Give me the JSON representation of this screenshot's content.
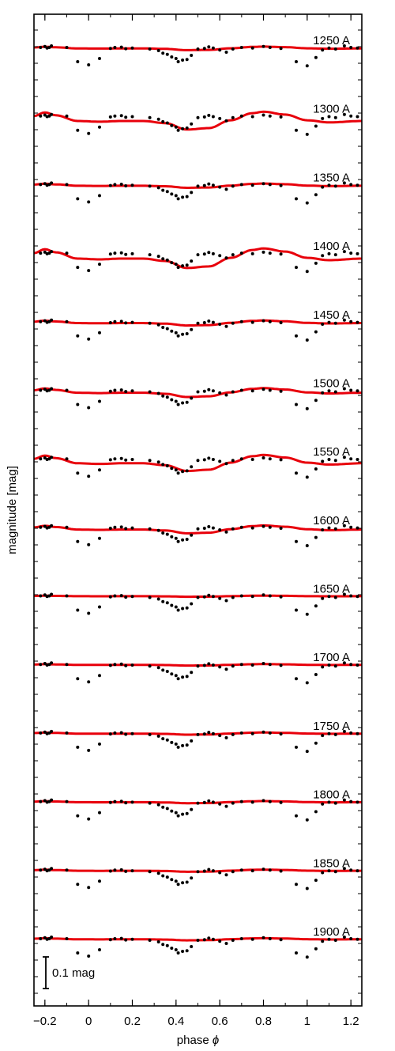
{
  "chart_data": {
    "type": "scatter",
    "title": "",
    "xlabel": "phase",
    "xlabel_symbol": "ϕ",
    "ylabel": "magnitude [mag]",
    "xlim": [
      -0.25,
      1.25
    ],
    "xticks": [
      -0.2,
      0,
      0.2,
      0.4,
      0.6,
      0.8,
      1,
      1.2
    ],
    "xtick_labels": [
      "−0.2",
      "0",
      "0.2",
      "0.4",
      "0.6",
      "0.8",
      "1",
      "1.2"
    ],
    "grid": false,
    "y_units_per_mag": 1,
    "scale_bar": {
      "label": "0.1 mag",
      "size_mag": 0.1
    },
    "panels": [
      {
        "label": "1250 A",
        "amp": 0.01,
        "offset": 0.0
      },
      {
        "label": "1300 A",
        "amp": 0.05,
        "offset": 0.0
      },
      {
        "label": "1350 A",
        "amp": 0.012,
        "offset": 0.0
      },
      {
        "label": "1400 A",
        "amp": 0.055,
        "offset": 0.0
      },
      {
        "label": "1450 A",
        "amp": 0.014,
        "offset": 0.0
      },
      {
        "label": "1500 A",
        "amp": 0.025,
        "offset": 0.0
      },
      {
        "label": "1550 A",
        "amp": 0.045,
        "offset": 0.0
      },
      {
        "label": "1600 A",
        "amp": 0.022,
        "offset": 0.0
      },
      {
        "label": "1650 A",
        "amp": 0.003,
        "offset": 0.0
      },
      {
        "label": "1700 A",
        "amp": 0.004,
        "offset": 0.0
      },
      {
        "label": "1750 A",
        "amp": 0.006,
        "offset": 0.0
      },
      {
        "label": "1800 A",
        "amp": 0.006,
        "offset": 0.0
      },
      {
        "label": "1850 A",
        "amp": 0.006,
        "offset": 0.0
      },
      {
        "label": "1900 A",
        "amp": 0.006,
        "offset": 0.0
      }
    ],
    "model_shape": [
      [
        -0.25,
        0.0
      ],
      [
        -0.2,
        -0.25
      ],
      [
        -0.15,
        -0.05
      ],
      [
        -0.05,
        0.35
      ],
      [
        0.05,
        0.4
      ],
      [
        0.15,
        0.35
      ],
      [
        0.25,
        0.35
      ],
      [
        0.35,
        0.5
      ],
      [
        0.45,
        0.95
      ],
      [
        0.55,
        0.85
      ],
      [
        0.65,
        0.3
      ],
      [
        0.75,
        -0.2
      ],
      [
        0.8,
        -0.3
      ],
      [
        0.9,
        -0.1
      ],
      [
        1.0,
        0.3
      ],
      [
        1.1,
        0.45
      ],
      [
        1.25,
        0.35
      ]
    ],
    "points": [
      [
        -0.22,
        0.0
      ],
      [
        -0.2,
        -0.03
      ],
      [
        -0.19,
        0.02
      ],
      [
        -0.18,
        0.0
      ],
      [
        -0.17,
        -0.05
      ],
      [
        -0.1,
        0.0
      ],
      [
        -0.05,
        0.45
      ],
      [
        0.0,
        0.55
      ],
      [
        0.05,
        0.35
      ],
      [
        0.1,
        0.03
      ],
      [
        0.12,
        0.0
      ],
      [
        0.15,
        -0.01
      ],
      [
        0.17,
        0.04
      ],
      [
        0.2,
        0.02
      ],
      [
        0.28,
        0.05
      ],
      [
        0.32,
        0.1
      ],
      [
        0.34,
        0.18
      ],
      [
        0.36,
        0.22
      ],
      [
        0.38,
        0.3
      ],
      [
        0.4,
        0.35
      ],
      [
        0.41,
        0.45
      ],
      [
        0.43,
        0.4
      ],
      [
        0.45,
        0.38
      ],
      [
        0.47,
        0.25
      ],
      [
        0.5,
        0.05
      ],
      [
        0.53,
        0.03
      ],
      [
        0.55,
        -0.02
      ],
      [
        0.57,
        0.02
      ],
      [
        0.6,
        0.08
      ],
      [
        0.63,
        0.15
      ],
      [
        0.66,
        0.05
      ],
      [
        0.7,
        0.0
      ],
      [
        0.75,
        0.02
      ],
      [
        0.8,
        -0.03
      ],
      [
        0.83,
        0.0
      ],
      [
        0.88,
        0.03
      ],
      [
        0.95,
        0.45
      ],
      [
        1.0,
        0.58
      ],
      [
        1.04,
        0.32
      ],
      [
        1.07,
        0.08
      ],
      [
        1.1,
        0.02
      ],
      [
        1.13,
        0.05
      ],
      [
        1.17,
        -0.05
      ],
      [
        1.2,
        0.0
      ],
      [
        1.23,
        0.02
      ]
    ],
    "colors": {
      "model": "#e8000b",
      "points": "#000000",
      "axes": "#000000"
    }
  }
}
